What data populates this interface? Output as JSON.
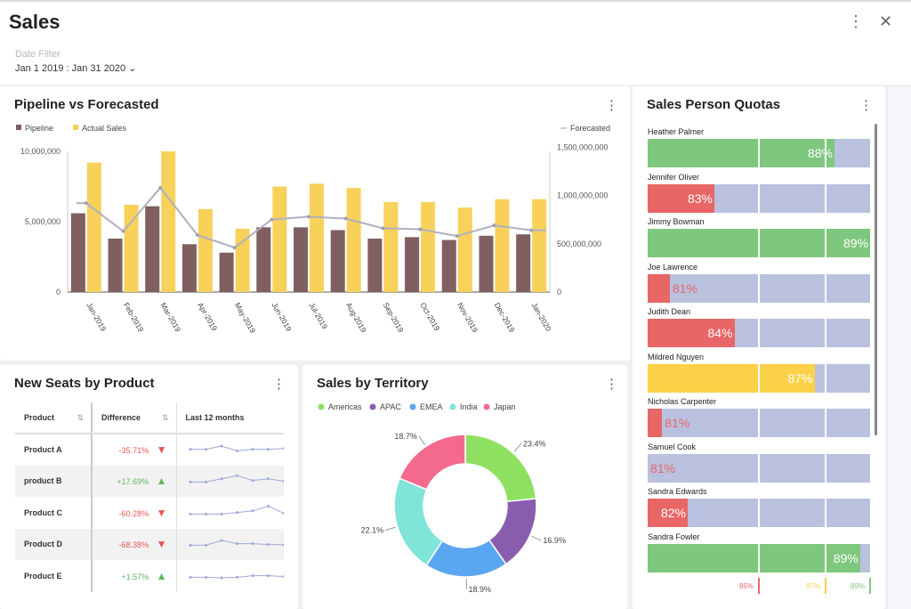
{
  "header": {
    "title": "Sales",
    "menu_icon": "kebab-icon",
    "close_icon": "close-icon",
    "date_filter_label": "Date Filter",
    "date_filter_value": "Jan 1 2019 : Jan 31 2020 ⌄"
  },
  "pipeline": {
    "title": "Pipeline vs Forecasted"
  },
  "chart_data": [
    {
      "type": "bar+line",
      "title": "Pipeline vs Forecasted",
      "categories": [
        "Jan-2019",
        "Feb-2019",
        "Mar-2019",
        "Apr-2019",
        "May-2019",
        "Jun-2019",
        "Jul-2019",
        "Aug-2019",
        "Sep-2019",
        "Oct-2019",
        "Nov-2019",
        "Dec-2019",
        "Jan-2020"
      ],
      "series": [
        {
          "name": "Pipeline",
          "type": "bar",
          "axis": "left",
          "color": "#7f5f5f",
          "values": [
            5600000,
            3800000,
            6100000,
            3400000,
            2800000,
            4600000,
            4600000,
            4400000,
            3800000,
            3900000,
            3700000,
            4000000,
            4100000
          ]
        },
        {
          "name": "Actual Sales",
          "type": "bar",
          "axis": "left",
          "color": "#f7d15a",
          "values": [
            9200000,
            6200000,
            10000000,
            5900000,
            4500000,
            7500000,
            7700000,
            7400000,
            6400000,
            6400000,
            6000000,
            6600000,
            6600000
          ]
        },
        {
          "name": "Forecasted",
          "type": "line",
          "axis": "right",
          "color": "#b0b0c0",
          "values": [
            920000000,
            630000000,
            1080000000,
            590000000,
            460000000,
            750000000,
            780000000,
            760000000,
            660000000,
            650000000,
            580000000,
            690000000,
            640000000
          ]
        }
      ],
      "left_axis": {
        "ylim": [
          0,
          10000000
        ],
        "ticks": [
          "0",
          "5,000,000",
          "10,000,000"
        ]
      },
      "right_axis": {
        "ylim": [
          0,
          1500000000
        ],
        "ticks": [
          "0",
          "500,000,000",
          "1,000,000,000",
          "1,500,000,000"
        ]
      },
      "legend": "top"
    },
    {
      "type": "pie",
      "title": "Sales by Territory",
      "donut": true,
      "labels": [
        "Americas",
        "APAC",
        "EMEA",
        "India",
        "Japan"
      ],
      "values": [
        23.4,
        16.9,
        18.9,
        22.1,
        18.7
      ],
      "value_labels": [
        "23.4%",
        "16.9%",
        "18.9%",
        "22.1%",
        "18.7%"
      ],
      "colors": [
        "#8fe060",
        "#8a5cae",
        "#5aa6f0",
        "#80e4d8",
        "#f46a8c"
      ],
      "legend": "top"
    }
  ],
  "seats": {
    "title": "New Seats by Product",
    "columns": [
      "Product",
      "Difference",
      "Last 12 months"
    ],
    "rows": [
      {
        "product": "Product A",
        "diff": "-35.71%",
        "dir": "down",
        "spark": [
          3,
          3,
          5,
          2,
          3,
          3,
          3.5
        ]
      },
      {
        "product": "product B",
        "diff": "+17.69%",
        "dir": "up",
        "spark": [
          2,
          2,
          4,
          6,
          3,
          4,
          2.5
        ]
      },
      {
        "product": "Product C",
        "diff": "-60.28%",
        "dir": "down",
        "spark": [
          2,
          2,
          2,
          3,
          4,
          7,
          2.5
        ]
      },
      {
        "product": "Product D",
        "diff": "-68.38%",
        "dir": "down",
        "spark": [
          2,
          2,
          5,
          3,
          3,
          2.5,
          2.3
        ]
      },
      {
        "product": "Product E",
        "diff": "+1.57%",
        "dir": "up",
        "spark": [
          2,
          2,
          1.7,
          2,
          3,
          3,
          2.5
        ]
      }
    ]
  },
  "territory": {
    "title": "Sales by Territory"
  },
  "quotas": {
    "title": "Sales Person Quotas",
    "people": [
      {
        "name": "Heather Palmer",
        "label": "88%",
        "fill": 0.84,
        "color": "#7ec77e",
        "label_color": "#ffffff"
      },
      {
        "name": "Jennifer Oliver",
        "label": "83%",
        "fill": 0.3,
        "color": "#e86666",
        "label_color": "#ffffff"
      },
      {
        "name": "Jimmy Bowman",
        "label": "89%",
        "fill": 1.0,
        "color": "#7ec77e",
        "label_color": "#ffffff"
      },
      {
        "name": "Joe Lawrence",
        "label": "81%",
        "fill": 0.1,
        "color": "#e86666",
        "label_color": "#e86666"
      },
      {
        "name": "Judith Dean",
        "label": "84%",
        "fill": 0.39,
        "color": "#e86666",
        "label_color": "#ffffff"
      },
      {
        "name": "Mildred Nguyen",
        "label": "87%",
        "fill": 0.75,
        "color": "#fbd147",
        "label_color": "#ffffff"
      },
      {
        "name": "Nicholas Carpenter",
        "label": "81%",
        "fill": 0.065,
        "color": "#e86666",
        "label_color": "#e86666"
      },
      {
        "name": "Samuel Cook",
        "label": "81%",
        "fill": 0,
        "color": "#e86666",
        "label_color": "#e86666"
      },
      {
        "name": "Sandra Edwards",
        "label": "82%",
        "fill": 0.18,
        "color": "#e86666",
        "label_color": "#ffffff"
      },
      {
        "name": "Sandra Fowler",
        "label": "89%",
        "fill": 0.955,
        "color": "#7ec77e",
        "label_color": "#ffffff"
      }
    ],
    "thresholds": [
      {
        "label": "85%",
        "pos": 0.5,
        "color": "#e86666"
      },
      {
        "label": "87%",
        "pos": 0.8,
        "color": "#fbd147"
      },
      {
        "label": "89%",
        "pos": 1.0,
        "color": "#7ec77e"
      }
    ]
  }
}
